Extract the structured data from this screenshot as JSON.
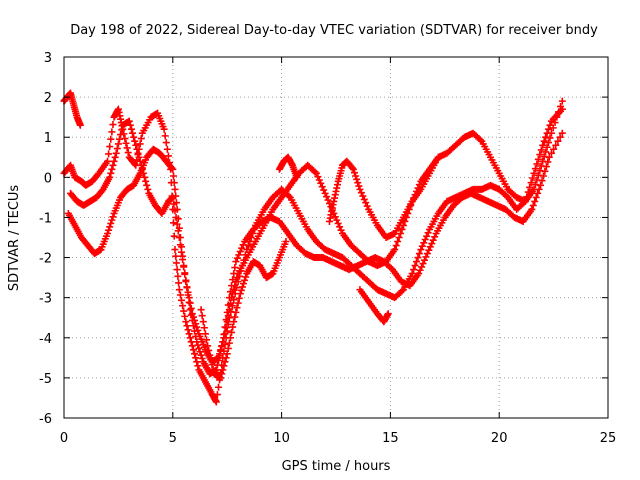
{
  "chart_data": {
    "type": "scatter",
    "title": "Day 198 of 2022, Sidereal Day-to-day VTEC variation (SDTVAR) for receiver bndy",
    "xlabel": "GPS time / hours",
    "ylabel": "SDTVAR / TECUs",
    "xlim": [
      0,
      25
    ],
    "ylim": [
      -6,
      3
    ],
    "xticks": [
      0,
      5,
      10,
      15,
      20,
      25
    ],
    "yticks": [
      -6,
      -5,
      -4,
      -3,
      -2,
      -1,
      0,
      1,
      2,
      3
    ],
    "grid": true,
    "marker": "+",
    "color": "#ff0000",
    "series": [
      {
        "x": [
          0.0,
          0.3,
          0.5,
          0.8,
          1.0,
          1.3,
          1.6,
          2.0,
          2.3,
          2.5,
          2.7,
          3.0,
          3.3,
          3.6,
          4.0,
          4.3,
          4.6,
          4.9,
          5.1,
          5.3,
          5.6,
          5.9,
          6.2,
          6.5,
          6.8,
          7.0,
          7.3,
          7.6,
          8.0,
          8.4,
          8.8,
          9.2,
          9.6,
          10.0,
          10.4,
          10.8,
          11.2,
          11.6,
          12.0,
          12.4,
          12.8,
          13.2,
          13.6,
          14.0,
          14.4,
          14.8,
          15.2,
          15.6,
          16.0,
          16.4,
          16.8,
          17.2,
          17.6,
          18.0,
          18.4,
          18.8,
          19.2,
          19.6,
          20.0,
          20.4,
          20.8,
          21.2,
          21.6,
          22.0,
          22.4,
          22.9
        ],
        "y": [
          0.1,
          0.3,
          0.0,
          -0.1,
          -0.2,
          -0.1,
          0.1,
          0.4,
          1.5,
          1.7,
          1.2,
          0.5,
          0.3,
          1.1,
          1.5,
          1.6,
          1.2,
          0.2,
          -1.8,
          -2.8,
          -3.6,
          -4.2,
          -4.8,
          -5.1,
          -5.4,
          -5.6,
          -4.5,
          -3.5,
          -2.6,
          -1.8,
          -1.2,
          -0.8,
          -0.5,
          -0.3,
          -0.5,
          -0.9,
          -1.3,
          -1.6,
          -1.8,
          -1.9,
          -2.0,
          -2.2,
          -2.4,
          -2.6,
          -2.8,
          -2.9,
          -3.0,
          -2.8,
          -2.4,
          -1.8,
          -1.3,
          -0.9,
          -0.6,
          -0.5,
          -0.4,
          -0.3,
          -0.3,
          -0.2,
          -0.3,
          -0.5,
          -0.8,
          -0.6,
          0.1,
          0.8,
          1.4,
          1.7
        ]
      },
      {
        "x": [
          0.2,
          0.5,
          0.8,
          1.1,
          1.4,
          1.7,
          2.0,
          2.3,
          2.6,
          2.9,
          3.2,
          3.5,
          3.8,
          4.1,
          4.4,
          4.7,
          5.0,
          5.2,
          5.5,
          5.8,
          6.1,
          6.4,
          6.7,
          7.0,
          7.3,
          7.6,
          7.9,
          8.3,
          8.7,
          9.1,
          9.5,
          9.9,
          10.3,
          10.7,
          11.1,
          11.5,
          11.9,
          12.3,
          12.7,
          13.1,
          13.5,
          13.9,
          14.3,
          14.7,
          15.1,
          15.5,
          15.9,
          16.3,
          16.7,
          17.1,
          17.5,
          17.9,
          18.3,
          18.7,
          19.1,
          19.5,
          19.9,
          20.3,
          20.7,
          21.1,
          21.5,
          21.9,
          22.3,
          22.9
        ],
        "y": [
          -0.9,
          -1.2,
          -1.5,
          -1.7,
          -1.9,
          -1.8,
          -1.4,
          -0.9,
          -0.5,
          -0.3,
          -0.2,
          0.1,
          0.5,
          0.7,
          0.6,
          0.4,
          0.2,
          -0.8,
          -2.2,
          -3.3,
          -4.1,
          -4.6,
          -4.9,
          -4.8,
          -4.1,
          -3.0,
          -2.1,
          -1.6,
          -1.3,
          -1.1,
          -1.0,
          -1.1,
          -1.4,
          -1.7,
          -1.9,
          -2.0,
          -2.0,
          -2.1,
          -2.2,
          -2.3,
          -2.2,
          -2.1,
          -2.0,
          -2.1,
          -2.3,
          -2.6,
          -2.7,
          -2.4,
          -1.9,
          -1.4,
          -1.0,
          -0.7,
          -0.5,
          -0.4,
          -0.5,
          -0.6,
          -0.7,
          -0.8,
          -1.0,
          -1.1,
          -0.8,
          -0.2,
          0.5,
          1.1
        ]
      },
      {
        "x": [
          0.3,
          0.6,
          0.9,
          1.2,
          1.5,
          1.8,
          2.1,
          2.4,
          2.7,
          3.0,
          3.3,
          3.6,
          3.9,
          4.2,
          4.5,
          4.8,
          5.0,
          5.3,
          5.6,
          5.9,
          6.2,
          6.5,
          6.8,
          7.1,
          7.4,
          7.7,
          8.0,
          8.4,
          8.8,
          9.2,
          9.6,
          10.0,
          10.4,
          10.8,
          11.2,
          11.6,
          12.0,
          12.4,
          12.8,
          13.2,
          13.6,
          14.0,
          14.4,
          14.8,
          15.2,
          15.6,
          16.0,
          16.4,
          16.8,
          17.2,
          17.6,
          18.0,
          18.4,
          18.8,
          19.2,
          19.6,
          20.0,
          20.4,
          20.8,
          21.2,
          21.6,
          22.0,
          22.4,
          22.9
        ],
        "y": [
          -0.4,
          -0.6,
          -0.7,
          -0.6,
          -0.5,
          -0.3,
          0.0,
          0.6,
          1.3,
          1.4,
          0.8,
          0.2,
          -0.4,
          -0.7,
          -0.9,
          -0.6,
          -0.5,
          -1.5,
          -2.6,
          -3.4,
          -3.9,
          -4.3,
          -4.6,
          -4.5,
          -3.9,
          -3.0,
          -2.4,
          -2.0,
          -1.6,
          -1.2,
          -0.8,
          -0.5,
          -0.2,
          0.1,
          0.3,
          0.1,
          -0.4,
          -0.9,
          -1.4,
          -1.7,
          -1.9,
          -2.1,
          -2.2,
          -2.1,
          -1.8,
          -1.2,
          -0.6,
          -0.1,
          0.2,
          0.5,
          0.6,
          0.8,
          1.0,
          1.1,
          0.9,
          0.5,
          0.1,
          -0.3,
          -0.5,
          -0.6,
          -0.3,
          0.4,
          1.1,
          1.9
        ]
      },
      {
        "x": [
          0.0,
          0.15,
          0.3,
          0.45,
          0.6,
          0.75
        ],
        "y": [
          1.9,
          2.0,
          2.1,
          1.8,
          1.5,
          1.3
        ]
      },
      {
        "x": [
          6.3,
          6.6,
          6.9,
          7.2,
          7.5,
          7.8,
          8.1,
          8.4,
          8.7,
          9.0,
          9.3,
          9.6,
          9.9,
          10.2
        ],
        "y": [
          -3.3,
          -4.2,
          -4.9,
          -5.0,
          -4.4,
          -3.6,
          -2.9,
          -2.4,
          -2.1,
          -2.2,
          -2.5,
          -2.4,
          -2.0,
          -1.6
        ]
      },
      {
        "x": [
          13.6,
          14.0,
          14.4,
          14.7,
          14.9
        ],
        "y": [
          -2.8,
          -3.1,
          -3.4,
          -3.6,
          -3.4
        ]
      },
      {
        "x": [
          12.2,
          12.4,
          12.6,
          12.8,
          13.0,
          13.3,
          13.6,
          14.0,
          14.4,
          14.8,
          15.2,
          15.6,
          16.0,
          16.4,
          16.8,
          17.2
        ],
        "y": [
          -1.1,
          -0.6,
          -0.1,
          0.3,
          0.4,
          0.2,
          -0.3,
          -0.8,
          -1.2,
          -1.5,
          -1.4,
          -1.0,
          -0.6,
          -0.3,
          0.1,
          0.5
        ]
      },
      {
        "x": [
          9.9,
          10.1,
          10.3,
          10.5,
          10.7
        ],
        "y": [
          0.2,
          0.4,
          0.5,
          0.3,
          0.0
        ]
      }
    ]
  }
}
